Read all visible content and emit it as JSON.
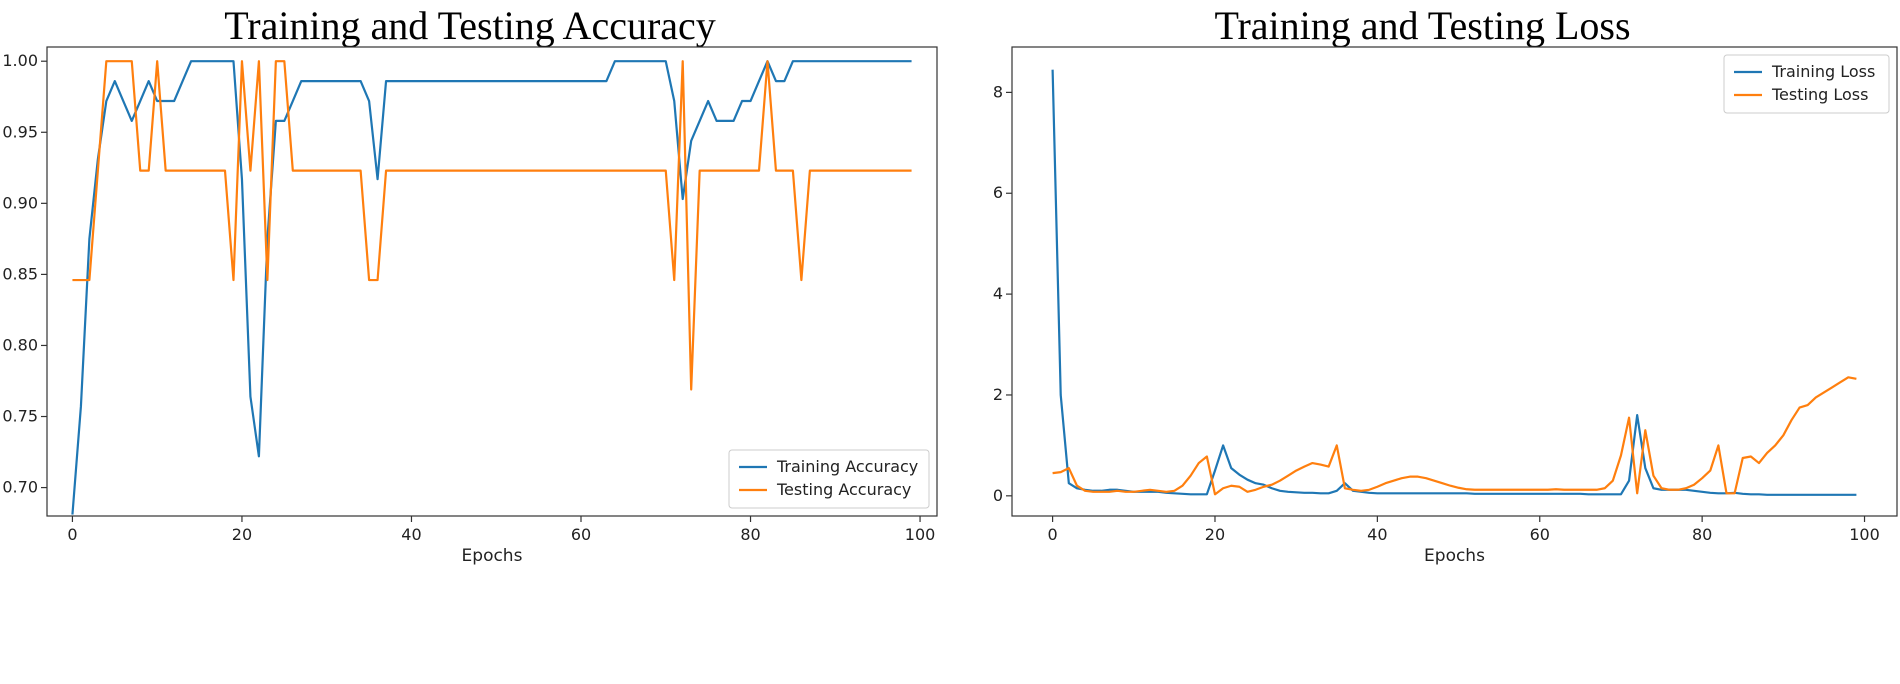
{
  "chart_data": [
    {
      "type": "line",
      "title": "Training and Testing Accuracy",
      "xlabel": "Epochs",
      "ylabel": "",
      "xlim": [
        -3,
        102
      ],
      "ylim": [
        0.68,
        1.01
      ],
      "xticks": [
        0,
        20,
        40,
        60,
        80,
        100
      ],
      "xtick_labels": [
        "0",
        "20",
        "40",
        "60",
        "80",
        "100"
      ],
      "yticks": [
        0.7,
        0.75,
        0.8,
        0.85,
        0.9,
        0.95,
        1.0
      ],
      "ytick_labels": [
        "0.70",
        "0.75",
        "0.80",
        "0.85",
        "0.90",
        "0.95",
        "1.00"
      ],
      "legend_position": "lower-right",
      "series": [
        {
          "name": "Training Accuracy",
          "color": "#1f77b4",
          "x": [
            0,
            1,
            2,
            3,
            4,
            5,
            6,
            7,
            8,
            9,
            10,
            11,
            12,
            13,
            14,
            15,
            16,
            17,
            18,
            19,
            20,
            21,
            22,
            23,
            24,
            25,
            26,
            27,
            28,
            29,
            30,
            31,
            32,
            33,
            34,
            35,
            36,
            37,
            38,
            39,
            40,
            41,
            42,
            43,
            44,
            45,
            46,
            47,
            48,
            49,
            50,
            51,
            52,
            53,
            54,
            55,
            56,
            57,
            58,
            59,
            60,
            61,
            62,
            63,
            64,
            65,
            66,
            67,
            68,
            69,
            70,
            71,
            72,
            73,
            74,
            75,
            76,
            77,
            78,
            79,
            80,
            81,
            82,
            83,
            84,
            85,
            86,
            87,
            88,
            89,
            90,
            91,
            92,
            93,
            94,
            95,
            96,
            97,
            98,
            99
          ],
          "values": [
            0.681,
            0.757,
            0.875,
            0.931,
            0.972,
            0.986,
            0.972,
            0.958,
            0.972,
            0.986,
            0.972,
            0.972,
            0.972,
            0.986,
            1.0,
            1.0,
            1.0,
            1.0,
            1.0,
            1.0,
            0.917,
            0.764,
            0.722,
            0.875,
            0.958,
            0.958,
            0.972,
            0.986,
            0.986,
            0.986,
            0.986,
            0.986,
            0.986,
            0.986,
            0.986,
            0.972,
            0.917,
            0.986,
            0.986,
            0.986,
            0.986,
            0.986,
            0.986,
            0.986,
            0.986,
            0.986,
            0.986,
            0.986,
            0.986,
            0.986,
            0.986,
            0.986,
            0.986,
            0.986,
            0.986,
            0.986,
            0.986,
            0.986,
            0.986,
            0.986,
            0.986,
            0.986,
            0.986,
            0.986,
            1.0,
            1.0,
            1.0,
            1.0,
            1.0,
            1.0,
            1.0,
            0.972,
            0.903,
            0.944,
            0.958,
            0.972,
            0.958,
            0.958,
            0.958,
            0.972,
            0.972,
            0.986,
            1.0,
            0.986,
            0.986,
            1.0,
            1.0,
            1.0,
            1.0,
            1.0,
            1.0,
            1.0,
            1.0,
            1.0,
            1.0,
            1.0,
            1.0,
            1.0,
            1.0,
            1.0
          ]
        },
        {
          "name": "Testing Accuracy",
          "color": "#ff7f0e",
          "x": [
            0,
            1,
            2,
            3,
            4,
            5,
            6,
            7,
            8,
            9,
            10,
            11,
            12,
            13,
            14,
            15,
            16,
            17,
            18,
            19,
            20,
            21,
            22,
            23,
            24,
            25,
            26,
            27,
            28,
            29,
            30,
            31,
            32,
            33,
            34,
            35,
            36,
            37,
            38,
            39,
            40,
            41,
            42,
            43,
            44,
            45,
            46,
            47,
            48,
            49,
            50,
            51,
            52,
            53,
            54,
            55,
            56,
            57,
            58,
            59,
            60,
            61,
            62,
            63,
            64,
            65,
            66,
            67,
            68,
            69,
            70,
            71,
            72,
            73,
            74,
            75,
            76,
            77,
            78,
            79,
            80,
            81,
            82,
            83,
            84,
            85,
            86,
            87,
            88,
            89,
            90,
            91,
            92,
            93,
            94,
            95,
            96,
            97,
            98,
            99
          ],
          "values": [
            0.846,
            0.846,
            0.846,
            0.923,
            1.0,
            1.0,
            1.0,
            1.0,
            0.923,
            0.923,
            1.0,
            0.923,
            0.923,
            0.923,
            0.923,
            0.923,
            0.923,
            0.923,
            0.923,
            0.846,
            1.0,
            0.923,
            1.0,
            0.846,
            1.0,
            1.0,
            0.923,
            0.923,
            0.923,
            0.923,
            0.923,
            0.923,
            0.923,
            0.923,
            0.923,
            0.846,
            0.846,
            0.923,
            0.923,
            0.923,
            0.923,
            0.923,
            0.923,
            0.923,
            0.923,
            0.923,
            0.923,
            0.923,
            0.923,
            0.923,
            0.923,
            0.923,
            0.923,
            0.923,
            0.923,
            0.923,
            0.923,
            0.923,
            0.923,
            0.923,
            0.923,
            0.923,
            0.923,
            0.923,
            0.923,
            0.923,
            0.923,
            0.923,
            0.923,
            0.923,
            0.923,
            0.846,
            1.0,
            0.769,
            0.923,
            0.923,
            0.923,
            0.923,
            0.923,
            0.923,
            0.923,
            0.923,
            1.0,
            0.923,
            0.923,
            0.923,
            0.846,
            0.923,
            0.923,
            0.923,
            0.923,
            0.923,
            0.923,
            0.923,
            0.923,
            0.923,
            0.923,
            0.923,
            0.923,
            0.923
          ]
        }
      ]
    },
    {
      "type": "line",
      "title": "Training and Testing Loss",
      "xlabel": "Epochs",
      "ylabel": "",
      "xlim": [
        -5,
        104
      ],
      "ylim": [
        -0.4,
        8.9
      ],
      "xticks": [
        0,
        20,
        40,
        60,
        80,
        100
      ],
      "xtick_labels": [
        "0",
        "20",
        "40",
        "60",
        "80",
        "100"
      ],
      "yticks": [
        0,
        2,
        4,
        6,
        8
      ],
      "ytick_labels": [
        "0",
        "2",
        "4",
        "6",
        "8"
      ],
      "legend_position": "top-right",
      "series": [
        {
          "name": "Training Loss",
          "color": "#1f77b4",
          "x": [
            0,
            1,
            2,
            3,
            4,
            5,
            6,
            7,
            8,
            9,
            10,
            11,
            12,
            13,
            14,
            15,
            16,
            17,
            18,
            19,
            20,
            21,
            22,
            23,
            24,
            25,
            26,
            27,
            28,
            29,
            30,
            31,
            32,
            33,
            34,
            35,
            36,
            37,
            38,
            39,
            40,
            41,
            42,
            43,
            44,
            45,
            46,
            47,
            48,
            49,
            50,
            51,
            52,
            53,
            54,
            55,
            56,
            57,
            58,
            59,
            60,
            61,
            62,
            63,
            64,
            65,
            66,
            67,
            68,
            69,
            70,
            71,
            72,
            73,
            74,
            75,
            76,
            77,
            78,
            79,
            80,
            81,
            82,
            83,
            84,
            85,
            86,
            87,
            88,
            89,
            90,
            91,
            92,
            93,
            94,
            95,
            96,
            97,
            98,
            99
          ],
          "values": [
            8.45,
            2.0,
            0.25,
            0.15,
            0.12,
            0.1,
            0.1,
            0.12,
            0.12,
            0.1,
            0.08,
            0.08,
            0.08,
            0.08,
            0.06,
            0.05,
            0.04,
            0.03,
            0.03,
            0.03,
            0.5,
            1.0,
            0.55,
            0.42,
            0.32,
            0.25,
            0.22,
            0.15,
            0.1,
            0.08,
            0.07,
            0.06,
            0.06,
            0.05,
            0.05,
            0.1,
            0.25,
            0.1,
            0.08,
            0.06,
            0.05,
            0.05,
            0.05,
            0.05,
            0.05,
            0.05,
            0.05,
            0.05,
            0.05,
            0.05,
            0.05,
            0.05,
            0.04,
            0.04,
            0.04,
            0.04,
            0.04,
            0.04,
            0.04,
            0.04,
            0.04,
            0.04,
            0.04,
            0.04,
            0.04,
            0.04,
            0.03,
            0.03,
            0.03,
            0.03,
            0.03,
            0.3,
            1.6,
            0.55,
            0.15,
            0.12,
            0.12,
            0.12,
            0.12,
            0.1,
            0.08,
            0.06,
            0.05,
            0.05,
            0.06,
            0.04,
            0.03,
            0.03,
            0.02,
            0.02,
            0.02,
            0.02,
            0.02,
            0.02,
            0.02,
            0.02,
            0.02,
            0.02,
            0.02,
            0.02
          ]
        },
        {
          "name": "Testing Loss",
          "color": "#ff7f0e",
          "x": [
            0,
            1,
            2,
            3,
            4,
            5,
            6,
            7,
            8,
            9,
            10,
            11,
            12,
            13,
            14,
            15,
            16,
            17,
            18,
            19,
            20,
            21,
            22,
            23,
            24,
            25,
            26,
            27,
            28,
            29,
            30,
            31,
            32,
            33,
            34,
            35,
            36,
            37,
            38,
            39,
            40,
            41,
            42,
            43,
            44,
            45,
            46,
            47,
            48,
            49,
            50,
            51,
            52,
            53,
            54,
            55,
            56,
            57,
            58,
            59,
            60,
            61,
            62,
            63,
            64,
            65,
            66,
            67,
            68,
            69,
            70,
            71,
            72,
            73,
            74,
            75,
            76,
            77,
            78,
            79,
            80,
            81,
            82,
            83,
            84,
            85,
            86,
            87,
            88,
            89,
            90,
            91,
            92,
            93,
            94,
            95,
            96,
            97,
            98,
            99
          ],
          "values": [
            0.45,
            0.47,
            0.55,
            0.2,
            0.1,
            0.08,
            0.08,
            0.08,
            0.1,
            0.08,
            0.08,
            0.1,
            0.12,
            0.1,
            0.08,
            0.1,
            0.2,
            0.4,
            0.65,
            0.78,
            0.03,
            0.15,
            0.2,
            0.18,
            0.08,
            0.12,
            0.18,
            0.22,
            0.3,
            0.4,
            0.5,
            0.58,
            0.65,
            0.62,
            0.58,
            1.0,
            0.15,
            0.12,
            0.1,
            0.12,
            0.18,
            0.25,
            0.3,
            0.35,
            0.38,
            0.38,
            0.35,
            0.3,
            0.25,
            0.2,
            0.16,
            0.13,
            0.12,
            0.12,
            0.12,
            0.12,
            0.12,
            0.12,
            0.12,
            0.12,
            0.12,
            0.12,
            0.13,
            0.12,
            0.12,
            0.12,
            0.12,
            0.12,
            0.15,
            0.3,
            0.8,
            1.55,
            0.05,
            1.3,
            0.4,
            0.15,
            0.12,
            0.12,
            0.15,
            0.22,
            0.35,
            0.5,
            1.0,
            0.05,
            0.05,
            0.75,
            0.78,
            0.65,
            0.85,
            1.0,
            1.2,
            1.5,
            1.75,
            1.8,
            1.95,
            2.05,
            2.15,
            2.25,
            2.35,
            2.32
          ]
        }
      ]
    }
  ]
}
